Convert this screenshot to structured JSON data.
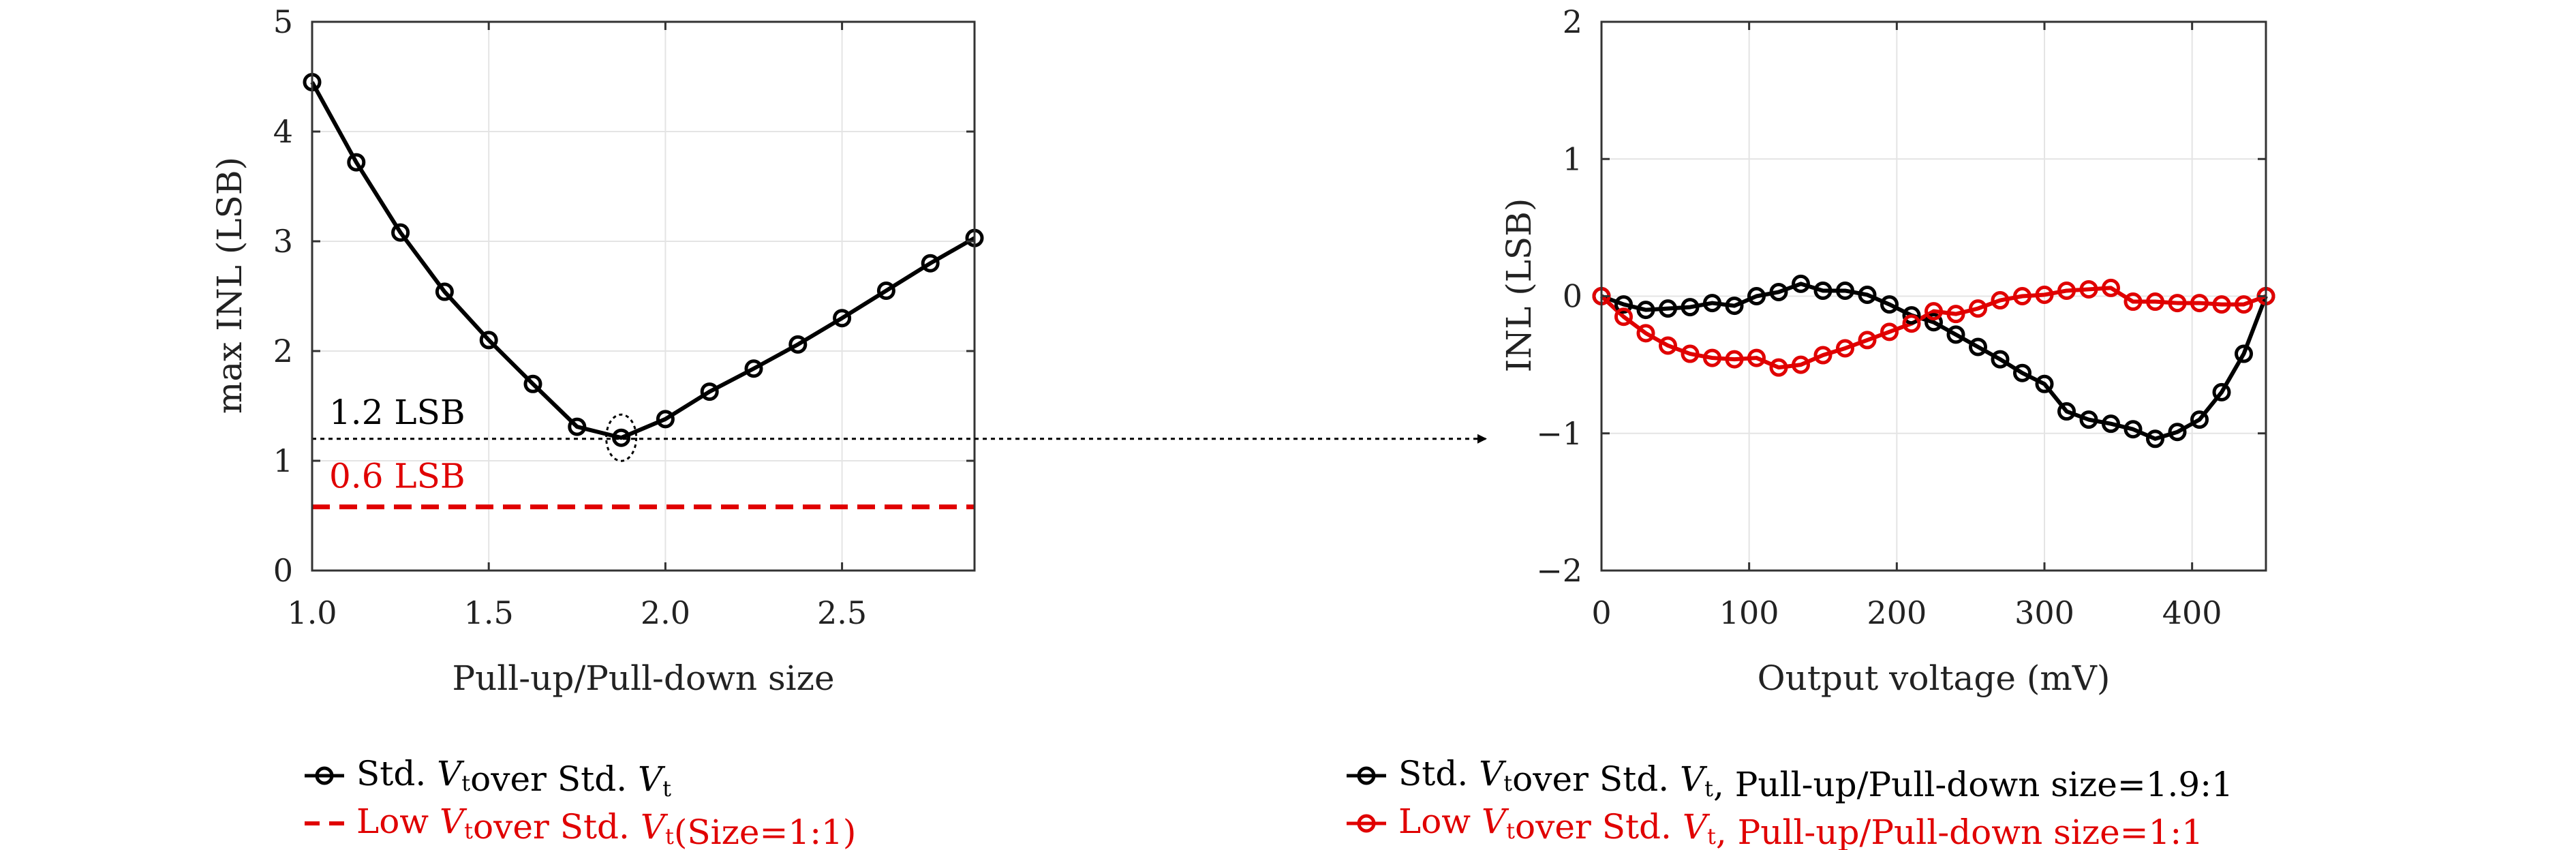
{
  "chart_data": [
    {
      "type": "line",
      "xlabel": "Pull-up/Pull-down size",
      "ylabel": "max INL (LSB)",
      "xlim": [
        1.0,
        2.875
      ],
      "ylim": [
        0,
        5
      ],
      "xticks": [
        "1.0",
        "1.5",
        "2.0",
        "2.5"
      ],
      "yticks": [
        "0",
        "1",
        "2",
        "3",
        "4",
        "5"
      ],
      "grid": true,
      "x": [
        1.0,
        1.125,
        1.25,
        1.375,
        1.5,
        1.625,
        1.75,
        1.875,
        2.0,
        2.125,
        2.25,
        2.375,
        2.5,
        2.625,
        2.75,
        2.875
      ],
      "series": [
        {
          "name": "Std. Vt over Std. Vt",
          "color": "#000000",
          "marker": "circle",
          "values": [
            4.45,
            3.72,
            3.08,
            2.54,
            2.1,
            1.7,
            1.31,
            1.21,
            1.38,
            1.63,
            1.84,
            2.06,
            2.3,
            2.55,
            2.8,
            3.03
          ]
        },
        {
          "name": "Low Vt over Std. Vt (Size=1:1)",
          "color": "#e00000",
          "style": "dashed",
          "constant": 0.58
        }
      ],
      "reference_line": {
        "y": 1.2,
        "style": "dotted",
        "color": "#000000"
      },
      "annotations": [
        {
          "text": "1.2 LSB",
          "color": "#000000"
        },
        {
          "text": "0.6 LSB",
          "color": "#e00000"
        }
      ],
      "highlight_point": {
        "x": 1.875,
        "y": 1.21
      }
    },
    {
      "type": "line",
      "xlabel": "Output voltage (mV)",
      "ylabel": "INL (LSB)",
      "xlim": [
        0,
        450
      ],
      "ylim": [
        -2,
        2
      ],
      "xticks": [
        "0",
        "100",
        "200",
        "300",
        "400"
      ],
      "yticks": [
        "−2",
        "−1",
        "0",
        "1",
        "2"
      ],
      "grid": true,
      "x": [
        0,
        15,
        30,
        45,
        60,
        75,
        90,
        105,
        120,
        135,
        150,
        165,
        180,
        195,
        210,
        225,
        240,
        255,
        270,
        285,
        300,
        315,
        330,
        345,
        360,
        375,
        390,
        405,
        420,
        435,
        450
      ],
      "series": [
        {
          "name": "Std. Vt over Std. Vt, Pull-up/Pull-down size=1.9:1",
          "color": "#000000",
          "marker": "circle",
          "values": [
            0,
            -0.06,
            -0.1,
            -0.09,
            -0.08,
            -0.05,
            -0.07,
            0.0,
            0.03,
            0.09,
            0.04,
            0.04,
            0.01,
            -0.06,
            -0.14,
            -0.19,
            -0.28,
            -0.37,
            -0.46,
            -0.56,
            -0.64,
            -0.84,
            -0.9,
            -0.93,
            -0.97,
            -1.04,
            -0.99,
            -0.9,
            -0.7,
            -0.42,
            0
          ]
        },
        {
          "name": "Low Vt over Std. Vt, Pull-up/Pull-down size=1:1",
          "color": "#e00000",
          "marker": "circle",
          "values": [
            0,
            -0.15,
            -0.27,
            -0.36,
            -0.42,
            -0.45,
            -0.46,
            -0.45,
            -0.52,
            -0.5,
            -0.43,
            -0.38,
            -0.32,
            -0.26,
            -0.2,
            -0.11,
            -0.13,
            -0.09,
            -0.03,
            0.0,
            0.01,
            0.04,
            0.05,
            0.06,
            -0.04,
            -0.04,
            -0.05,
            -0.05,
            -0.06,
            -0.06,
            0
          ]
        }
      ]
    }
  ],
  "legend_left": [
    {
      "prefix": "Std. ",
      "italic": "V",
      "sub": "t",
      "mid": "over Std. ",
      "italic2": "V",
      "sub2": "t",
      "suffix": ""
    },
    {
      "prefix": "Low ",
      "italic": "V",
      "sub": "t",
      "mid": "over Std. ",
      "italic2": "V",
      "sub2": "t",
      "suffix": "(Size=1:1)"
    }
  ],
  "legend_right": [
    {
      "prefix": "Std. ",
      "italic": "V",
      "sub": "t",
      "mid": "over Std. ",
      "italic2": "V",
      "sub2": "t",
      "suffix": ", Pull-up/Pull-down size=1.9:1"
    },
    {
      "prefix": "Low ",
      "italic": "V",
      "sub": "t",
      "mid": "over Std. ",
      "italic2": "V",
      "sub2": "t",
      "suffix": ", Pull-up/Pull-down size=1:1"
    }
  ]
}
